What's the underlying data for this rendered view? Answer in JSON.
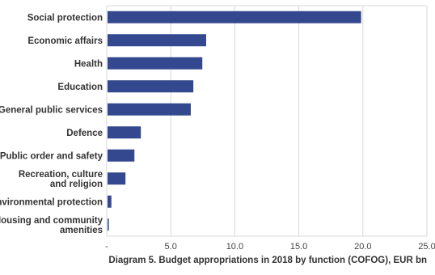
{
  "chart_data": {
    "type": "bar",
    "orientation": "horizontal",
    "categories": [
      "Social protection",
      "Economic affairs",
      "Health",
      "Education",
      "General public services",
      "Defence",
      "Public order and safety",
      "Recreation, culture and religion",
      "Environmental protection",
      "Housing and community amenities"
    ],
    "values": [
      19.8,
      7.7,
      7.4,
      6.7,
      6.5,
      2.6,
      2.1,
      1.4,
      0.3,
      0.1
    ],
    "xlim": [
      0,
      25
    ],
    "xticks": [
      "-",
      "5.0",
      "10.0",
      "15.0",
      "20.0",
      "25.0"
    ],
    "title": "Diagram 5. Budget appropriations in 2018 by function (COFOG), EUR bn",
    "grid": true,
    "bar_color": "#34488f",
    "grid_color": "#d9d9d9"
  }
}
